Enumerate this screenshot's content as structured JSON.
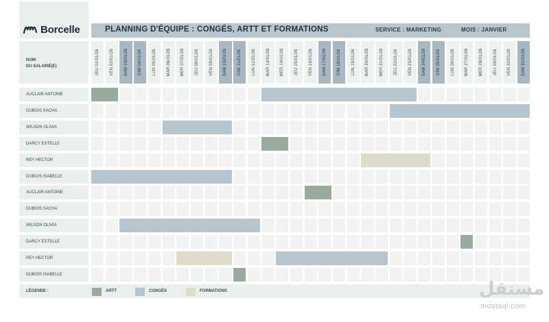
{
  "brand": {
    "name": "Borcelle",
    "logo_icon": "wave-logo-icon"
  },
  "header": {
    "title": "PLANNING D'ÉQUIPE : CONGÉS, ARTT ET FORMATIONS",
    "service": "SERVICE : MARKETING",
    "month": "MOIS : JANVIER"
  },
  "columns": {
    "name_header": "NOM\nDU SALARIÉ(E)",
    "days": [
      {
        "label": "JEU 01/01/26",
        "weekend": false
      },
      {
        "label": "VEN 02/01/26",
        "weekend": false
      },
      {
        "label": "SAM 03/01/26",
        "weekend": true
      },
      {
        "label": "DIM 04/01/26",
        "weekend": true
      },
      {
        "label": "LUN 05/01/26",
        "weekend": false
      },
      {
        "label": "MAR 06/01/26",
        "weekend": false
      },
      {
        "label": "MER 07/01/26",
        "weekend": false
      },
      {
        "label": "JEU 08/01/26",
        "weekend": false
      },
      {
        "label": "VEN 09/01/26",
        "weekend": false
      },
      {
        "label": "SAM 10/01/26",
        "weekend": true
      },
      {
        "label": "DIM 11/01/26",
        "weekend": true
      },
      {
        "label": "LUN 12/01/26",
        "weekend": false
      },
      {
        "label": "MAR 13/01/26",
        "weekend": false
      },
      {
        "label": "MER 14/01/26",
        "weekend": false
      },
      {
        "label": "JEU 15/01/26",
        "weekend": false
      },
      {
        "label": "VEN 16/01/26",
        "weekend": false
      },
      {
        "label": "SAM 17/01/26",
        "weekend": true
      },
      {
        "label": "DIM 18/01/26",
        "weekend": true
      },
      {
        "label": "LUN 19/01/26",
        "weekend": false
      },
      {
        "label": "MAR 20/01/26",
        "weekend": false
      },
      {
        "label": "MER 21/01/26",
        "weekend": false
      },
      {
        "label": "JEU 22/01/26",
        "weekend": false
      },
      {
        "label": "VEN 23/01/26",
        "weekend": false
      },
      {
        "label": "SAM 24/01/26",
        "weekend": true
      },
      {
        "label": "DIM 25/01/26",
        "weekend": true
      },
      {
        "label": "LUN 26/01/26",
        "weekend": false
      },
      {
        "label": "MAR 27/01/26",
        "weekend": false
      },
      {
        "label": "MER 28/01/26",
        "weekend": false
      },
      {
        "label": "JEU 29/01/26",
        "weekend": false
      },
      {
        "label": "VEN 30/01/26",
        "weekend": false
      },
      {
        "label": "SAM 31/01/26",
        "weekend": true
      }
    ]
  },
  "employees": [
    {
      "name": "AUCLAIR ANTOINE",
      "absences": [
        {
          "type": "artt",
          "from": 1,
          "to": 2
        },
        {
          "type": "conges",
          "from": 13,
          "to": 23
        }
      ]
    },
    {
      "name": "DUBOIS SACHA",
      "absences": [
        {
          "type": "conges",
          "from": 22,
          "to": 31
        }
      ]
    },
    {
      "name": "WILSON OLIVIA",
      "absences": [
        {
          "type": "conges",
          "from": 6,
          "to": 10
        }
      ]
    },
    {
      "name": "DARCY ESTELLE",
      "absences": [
        {
          "type": "artt",
          "from": 13,
          "to": 14
        }
      ]
    },
    {
      "name": "REY HECTOR",
      "absences": [
        {
          "type": "formations",
          "from": 20,
          "to": 24
        }
      ]
    },
    {
      "name": "DUBOIS ISABELLE",
      "absences": [
        {
          "type": "conges",
          "from": 1,
          "to": 10
        }
      ]
    },
    {
      "name": "AUCLAIR ANTOINE",
      "absences": [
        {
          "type": "artt",
          "from": 16,
          "to": 17
        }
      ]
    },
    {
      "name": "DUBOIS SACHA",
      "absences": []
    },
    {
      "name": "WILSON OLIVIA",
      "absences": [
        {
          "type": "conges",
          "from": 3,
          "to": 12
        }
      ]
    },
    {
      "name": "DARCY ESTELLE",
      "absences": [
        {
          "type": "artt",
          "from": 27,
          "to": 27
        }
      ]
    },
    {
      "name": "REY HECTOR",
      "absences": [
        {
          "type": "formations",
          "from": 7,
          "to": 10
        },
        {
          "type": "conges",
          "from": 14,
          "to": 21
        }
      ]
    },
    {
      "name": "DUBOIS ISABELLE",
      "absences": [
        {
          "type": "artt",
          "from": 11,
          "to": 11
        }
      ]
    }
  ],
  "legend": {
    "title": "LÉGENDE :",
    "items": [
      {
        "key": "artt",
        "label": "ARTT",
        "color": "#98ab9d"
      },
      {
        "key": "conges",
        "label": "CONGÉS",
        "color": "#b6c6cf"
      },
      {
        "key": "formations",
        "label": "FORMATIONS",
        "color": "#dedbcb"
      }
    ]
  },
  "watermark": {
    "script": "مستقل",
    "domain": "mostaql.com"
  }
}
